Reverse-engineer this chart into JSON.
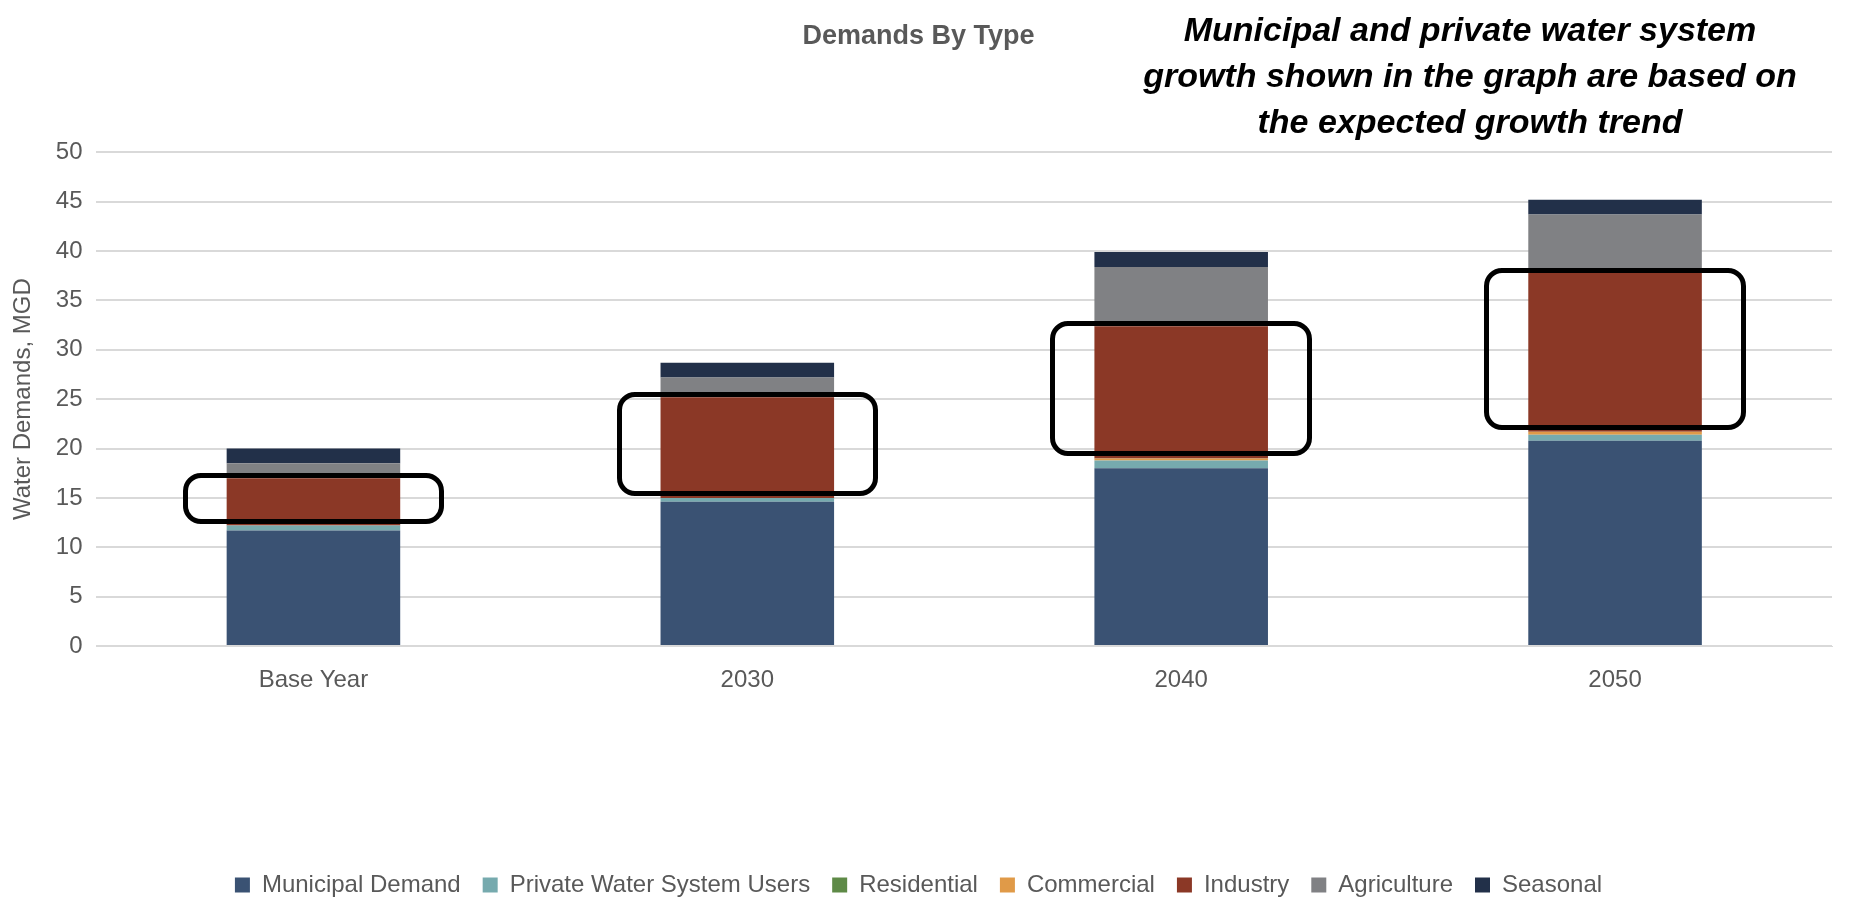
{
  "chart_data": {
    "type": "bar",
    "title": "Demands By Type",
    "ylabel": "Water Demands, MGD",
    "categories": [
      "Base Year",
      "2030",
      "2040",
      "2050"
    ],
    "series": [
      {
        "name": "Municipal Demand",
        "color": "#3a5273",
        "values": [
          11.7,
          14.6,
          18.0,
          20.8
        ]
      },
      {
        "name": "Private Water System Users",
        "color": "#76aaae",
        "values": [
          0.5,
          0.4,
          0.8,
          0.6
        ]
      },
      {
        "name": "Residential",
        "color": "#5e8a47",
        "values": [
          0,
          0,
          0,
          0
        ]
      },
      {
        "name": "Commercial",
        "color": "#e09a48",
        "values": [
          0,
          0,
          0.2,
          0.3
        ]
      },
      {
        "name": "Industry",
        "color": "#8b3826",
        "values": [
          4.8,
          10.2,
          13.4,
          16.1
        ]
      },
      {
        "name": "Agriculture",
        "color": "#808184",
        "values": [
          1.5,
          2.0,
          6.0,
          5.9
        ]
      },
      {
        "name": "Seasonal",
        "color": "#223049",
        "values": [
          1.5,
          1.5,
          1.5,
          1.5
        ]
      }
    ],
    "stacked": true,
    "ylim": [
      0,
      50
    ],
    "yticks": [
      0,
      5,
      10,
      15,
      20,
      25,
      30,
      35,
      40,
      45,
      50
    ],
    "grid": "y",
    "legend": "bottom",
    "annotations": [
      "Municipal and private water system growth shown in the graph are based on the expected growth trend"
    ]
  }
}
